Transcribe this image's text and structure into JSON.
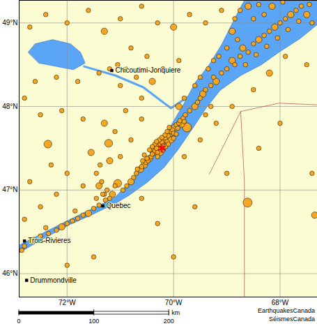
{
  "chart_data": {
    "type": "map",
    "xlim": [
      -72.9,
      -67.3
    ],
    "ylim": [
      45.72,
      49.27
    ],
    "xticks": [
      {
        "value": -72,
        "label": "72°W"
      },
      {
        "value": -70,
        "label": "70°W"
      },
      {
        "value": -68,
        "label": "68°W"
      }
    ],
    "yticks": [
      {
        "value": 46,
        "label": "46°N"
      },
      {
        "value": 47,
        "label": "47°N"
      },
      {
        "value": 48,
        "label": "48°N"
      },
      {
        "value": 49,
        "label": "49°N"
      }
    ],
    "grid": true,
    "color": "#f5a623",
    "water": [
      [
        [
          -72.9,
          46.34
        ],
        [
          -72.47,
          46.48
        ],
        [
          -71.94,
          46.65
        ],
        [
          -71.55,
          46.77
        ],
        [
          -71.29,
          46.85
        ],
        [
          -71.09,
          46.92
        ],
        [
          -70.83,
          47.09
        ],
        [
          -70.57,
          47.27
        ],
        [
          -70.31,
          47.52
        ],
        [
          -70.05,
          47.77
        ],
        [
          -69.82,
          48.02
        ],
        [
          -69.59,
          48.29
        ],
        [
          -69.33,
          48.5
        ],
        [
          -69.09,
          48.75
        ],
        [
          -68.91,
          48.98
        ],
        [
          -68.74,
          49.19
        ],
        [
          -68.67,
          49.27
        ],
        [
          -67.3,
          49.27
        ],
        [
          -67.3,
          48.98
        ],
        [
          -67.63,
          48.81
        ],
        [
          -68.02,
          48.65
        ],
        [
          -68.35,
          48.5
        ],
        [
          -68.74,
          48.37
        ],
        [
          -69.13,
          48.19
        ],
        [
          -69.39,
          47.98
        ],
        [
          -69.65,
          47.73
        ],
        [
          -69.92,
          47.48
        ],
        [
          -70.18,
          47.27
        ],
        [
          -70.5,
          47.09
        ],
        [
          -70.83,
          46.94
        ],
        [
          -71.09,
          46.84
        ],
        [
          -71.32,
          46.77
        ],
        [
          -71.55,
          46.7
        ],
        [
          -71.94,
          46.59
        ],
        [
          -72.47,
          46.41
        ],
        [
          -72.9,
          46.25
        ]
      ],
      [
        [
          -72.73,
          48.65
        ],
        [
          -72.6,
          48.75
        ],
        [
          -72.27,
          48.8
        ],
        [
          -71.94,
          48.75
        ],
        [
          -71.75,
          48.65
        ],
        [
          -71.66,
          48.52
        ],
        [
          -71.88,
          48.44
        ],
        [
          -72.21,
          48.48
        ],
        [
          -72.53,
          48.52
        ]
      ]
    ],
    "rivers": [
      [
        [
          -71.68,
          48.48
        ],
        [
          -71.09,
          48.37
        ],
        [
          -70.57,
          48.23
        ],
        [
          -70.05,
          47.98
        ],
        [
          -69.72,
          48.12
        ]
      ]
    ],
    "borders": [
      [
        [
          -69.33,
          47.19
        ],
        [
          -68.74,
          47.94
        ],
        [
          -68.02,
          48.04
        ],
        [
          -67.3,
          48.02
        ]
      ],
      [
        [
          -68.74,
          47.94
        ],
        [
          -68.67,
          47.1
        ],
        [
          -68.67,
          45.72
        ]
      ]
    ],
    "points": [
      [
        -70.6,
        47.28,
        1
      ],
      [
        -70.55,
        47.3,
        2
      ],
      [
        -70.52,
        47.33,
        1
      ],
      [
        -70.48,
        47.35,
        1
      ],
      [
        -70.45,
        47.38,
        2
      ],
      [
        -70.5,
        47.38,
        1
      ],
      [
        -70.42,
        47.4,
        1
      ],
      [
        -70.4,
        47.43,
        1
      ],
      [
        -70.38,
        47.45,
        2
      ],
      [
        -70.35,
        47.47,
        1
      ],
      [
        -70.32,
        47.5,
        1
      ],
      [
        -70.3,
        47.45,
        1
      ],
      [
        -70.28,
        47.52,
        2
      ],
      [
        -70.25,
        47.55,
        1
      ],
      [
        -70.22,
        47.57,
        1
      ],
      [
        -70.2,
        47.53,
        1
      ],
      [
        -70.18,
        47.6,
        2
      ],
      [
        -70.15,
        47.62,
        1
      ],
      [
        -70.12,
        47.58,
        1
      ],
      [
        -70.1,
        47.65,
        1
      ],
      [
        -70.08,
        47.67,
        2
      ],
      [
        -70.05,
        47.7,
        1
      ],
      [
        -70.02,
        47.72,
        1
      ],
      [
        -70.0,
        47.68,
        1
      ],
      [
        -69.98,
        47.75,
        2
      ],
      [
        -69.95,
        47.78,
        1
      ],
      [
        -69.92,
        47.74,
        1
      ],
      [
        -69.9,
        47.8,
        1
      ],
      [
        -69.88,
        47.83,
        1
      ],
      [
        -69.85,
        47.79,
        2
      ],
      [
        -69.82,
        47.86,
        1
      ],
      [
        -70.35,
        47.55,
        1
      ],
      [
        -70.4,
        47.52,
        1
      ],
      [
        -70.45,
        47.48,
        1
      ],
      [
        -70.58,
        47.35,
        1
      ],
      [
        -70.62,
        47.25,
        2
      ],
      [
        -70.3,
        47.4,
        1
      ],
      [
        -70.25,
        47.45,
        2
      ],
      [
        -70.2,
        47.48,
        1
      ],
      [
        -70.15,
        47.52,
        1
      ],
      [
        -70.1,
        47.55,
        1
      ],
      [
        -70.05,
        47.6,
        2
      ],
      [
        -70.0,
        47.62,
        1
      ],
      [
        -69.95,
        47.67,
        1
      ],
      [
        -70.27,
        47.6,
        1
      ],
      [
        -70.22,
        47.63,
        1
      ],
      [
        -70.16,
        47.66,
        1
      ],
      [
        -70.12,
        47.7,
        1
      ],
      [
        -70.32,
        47.58,
        1
      ],
      [
        -70.38,
        47.5,
        2
      ],
      [
        -70.55,
        47.42,
        1
      ],
      [
        -70.68,
        47.25,
        1
      ],
      [
        -70.7,
        47.2,
        1
      ],
      [
        -69.78,
        47.9,
        1
      ],
      [
        -69.8,
        47.82,
        1
      ],
      [
        -70.08,
        47.75,
        1
      ],
      [
        -69.75,
        47.75,
        4
      ],
      [
        -70.75,
        47.15,
        1
      ],
      [
        -70.8,
        47.1,
        2
      ],
      [
        -70.88,
        47.05,
        1
      ],
      [
        -70.95,
        47.0,
        1
      ],
      [
        -71.05,
        47.08,
        3
      ],
      [
        -71.1,
        47.05,
        1
      ],
      [
        -71.15,
        46.95,
        2
      ],
      [
        -71.2,
        46.9,
        1
      ],
      [
        -71.28,
        46.88,
        1
      ],
      [
        -71.25,
        47.0,
        1
      ],
      [
        -71.3,
        46.95,
        1
      ],
      [
        -71.4,
        46.82,
        1
      ],
      [
        -71.5,
        46.78,
        1
      ],
      [
        -71.6,
        46.72,
        2
      ],
      [
        -71.7,
        46.7,
        1
      ],
      [
        -71.8,
        46.66,
        1
      ],
      [
        -71.9,
        46.63,
        1
      ],
      [
        -72.0,
        46.6,
        1
      ],
      [
        -72.1,
        46.56,
        2
      ],
      [
        -72.2,
        46.52,
        1
      ],
      [
        -72.35,
        46.48,
        1
      ],
      [
        -72.5,
        46.45,
        1
      ],
      [
        -72.65,
        46.4,
        2
      ],
      [
        -72.8,
        46.33,
        1
      ],
      [
        -72.85,
        46.28,
        1
      ],
      [
        -71.45,
        46.9,
        1
      ],
      [
        -71.85,
        46.75,
        1
      ],
      [
        -72.4,
        46.55,
        1
      ],
      [
        -71.35,
        47.1,
        1
      ],
      [
        -71.4,
        47.05,
        2
      ],
      [
        -71.33,
        46.95,
        1
      ],
      [
        -71.45,
        47.2,
        1
      ],
      [
        -71.38,
        47.3,
        1
      ],
      [
        -71.2,
        47.35,
        2
      ],
      [
        -71.0,
        47.4,
        1
      ],
      [
        -69.7,
        47.95,
        1
      ],
      [
        -69.6,
        48.0,
        2
      ],
      [
        -69.55,
        48.05,
        1
      ],
      [
        -69.5,
        48.1,
        1
      ],
      [
        -69.45,
        48.15,
        2
      ],
      [
        -69.4,
        48.2,
        1
      ],
      [
        -69.3,
        48.25,
        1
      ],
      [
        -69.25,
        48.35,
        1
      ],
      [
        -69.2,
        48.3,
        2
      ],
      [
        -69.1,
        48.4,
        1
      ],
      [
        -69.0,
        48.45,
        1
      ],
      [
        -68.9,
        48.55,
        2
      ],
      [
        -68.85,
        48.5,
        1
      ],
      [
        -68.75,
        48.6,
        1
      ],
      [
        -68.7,
        48.7,
        2
      ],
      [
        -68.6,
        48.65,
        1
      ],
      [
        -68.5,
        48.75,
        1
      ],
      [
        -68.4,
        48.8,
        2
      ],
      [
        -68.3,
        48.85,
        1
      ],
      [
        -68.2,
        48.9,
        1
      ],
      [
        -68.1,
        48.95,
        2
      ],
      [
        -68.0,
        49.0,
        1
      ],
      [
        -67.9,
        49.05,
        1
      ],
      [
        -67.8,
        49.1,
        2
      ],
      [
        -67.7,
        49.15,
        1
      ],
      [
        -67.6,
        49.2,
        1
      ],
      [
        -67.5,
        49.1,
        2
      ],
      [
        -67.4,
        49.0,
        1
      ],
      [
        -67.45,
        49.22,
        1
      ],
      [
        -67.65,
        49.02,
        1
      ],
      [
        -67.85,
        48.92,
        1
      ],
      [
        -68.05,
        48.82,
        1
      ],
      [
        -68.25,
        48.72,
        1
      ],
      [
        -68.45,
        48.62,
        1
      ],
      [
        -68.65,
        48.5,
        1
      ],
      [
        -68.8,
        48.8,
        1
      ],
      [
        -68.9,
        48.9,
        2
      ],
      [
        -68.85,
        49.05,
        1
      ],
      [
        -68.75,
        49.15,
        1
      ],
      [
        -68.6,
        49.2,
        2
      ],
      [
        -68.5,
        49.05,
        1
      ],
      [
        -68.3,
        49.1,
        1
      ],
      [
        -68.15,
        49.2,
        2
      ],
      [
        -67.95,
        49.25,
        1
      ],
      [
        -68.4,
        49.22,
        1
      ],
      [
        -69.0,
        48.7,
        1
      ],
      [
        -69.15,
        48.6,
        1
      ],
      [
        -69.25,
        48.55,
        1
      ],
      [
        -69.35,
        48.45,
        1
      ],
      [
        -69.5,
        48.35,
        1
      ],
      [
        -69.6,
        48.25,
        1
      ],
      [
        -69.8,
        48.1,
        1
      ],
      [
        -69.9,
        48.0,
        2
      ],
      [
        -69.4,
        47.9,
        1
      ],
      [
        -69.3,
        48.0,
        1
      ],
      [
        -72.7,
        48.95,
        1
      ],
      [
        -72.4,
        49.1,
        1
      ],
      [
        -72.0,
        49.0,
        1
      ],
      [
        -71.6,
        49.15,
        1
      ],
      [
        -71.3,
        48.9,
        2
      ],
      [
        -71.0,
        49.05,
        1
      ],
      [
        -70.6,
        49.2,
        1
      ],
      [
        -70.3,
        49.0,
        1
      ],
      [
        -70.0,
        48.95,
        2
      ],
      [
        -69.7,
        49.1,
        1
      ],
      [
        -69.4,
        49.0,
        1
      ],
      [
        -69.1,
        49.15,
        1
      ],
      [
        -70.8,
        48.7,
        1
      ],
      [
        -70.5,
        48.6,
        1
      ],
      [
        -70.2,
        48.45,
        1
      ],
      [
        -69.9,
        48.55,
        1
      ],
      [
        -70.4,
        48.3,
        2
      ],
      [
        -70.7,
        48.35,
        1
      ],
      [
        -71.0,
        48.25,
        1
      ],
      [
        -71.4,
        48.4,
        1
      ],
      [
        -71.8,
        48.3,
        1
      ],
      [
        -72.2,
        48.35,
        1
      ],
      [
        -72.6,
        48.3,
        1
      ],
      [
        -72.8,
        48.1,
        1
      ],
      [
        -72.5,
        47.9,
        1
      ],
      [
        -72.1,
        47.95,
        1
      ],
      [
        -71.7,
        47.85,
        1
      ],
      [
        -71.3,
        47.8,
        2
      ],
      [
        -70.9,
        47.95,
        1
      ],
      [
        -70.6,
        47.85,
        1
      ],
      [
        -70.8,
        47.6,
        1
      ],
      [
        -71.1,
        47.7,
        1
      ],
      [
        -72.3,
        47.3,
        1
      ],
      [
        -72.7,
        47.1,
        1
      ],
      [
        -72.0,
        47.2,
        1
      ],
      [
        -71.7,
        47.05,
        1
      ],
      [
        -72.5,
        46.8,
        1
      ],
      [
        -72.8,
        46.65,
        1
      ],
      [
        -72.2,
        46.95,
        1
      ],
      [
        -70.9,
        48.45,
        1
      ],
      [
        -71.05,
        48.5,
        1
      ],
      [
        -71.2,
        48.45,
        1
      ],
      [
        -70.6,
        48.1,
        1
      ],
      [
        -70.6,
        46.9,
        1
      ],
      [
        -70.3,
        46.6,
        1
      ],
      [
        -69.8,
        47.4,
        1
      ],
      [
        -69.5,
        47.6,
        1
      ],
      [
        -69.2,
        47.8,
        1
      ],
      [
        -68.9,
        48.0,
        1
      ],
      [
        -68.5,
        48.2,
        1
      ],
      [
        -68.2,
        48.4,
        2
      ],
      [
        -67.9,
        48.6,
        1
      ],
      [
        -67.5,
        48.5,
        1
      ],
      [
        -68.0,
        47.8,
        1
      ],
      [
        -68.4,
        47.5,
        1
      ],
      [
        -69.0,
        47.2,
        1
      ],
      [
        -69.6,
        46.8,
        1
      ],
      [
        -70.0,
        46.2,
        1
      ],
      [
        -71.5,
        46.2,
        1
      ],
      [
        -72.0,
        46.1,
        1
      ],
      [
        -67.4,
        47.2,
        1
      ],
      [
        -67.35,
        46.7,
        2
      ],
      [
        -68.61,
        46.85,
        4
      ],
      [
        -72.36,
        47.55,
        3
      ],
      [
        -71.55,
        47.45,
        2
      ],
      [
        -71.22,
        47.56,
        3
      ]
    ],
    "highlight": {
      "lon": -70.22,
      "lat": 47.5,
      "color": "#ff0000",
      "marker": "asterisk"
    },
    "cities": [
      {
        "name": "Chicoutimi-Jonquiere",
        "lon": -71.16,
        "lat": 48.43
      },
      {
        "name": "Quebec",
        "lon": -71.33,
        "lat": 46.81
      },
      {
        "name": "Trois-Rivieres",
        "lon": -72.8,
        "lat": 46.39
      },
      {
        "name": "Drummondville",
        "lon": -72.76,
        "lat": 45.92
      }
    ],
    "scale_bar": {
      "ticks": [
        0,
        100,
        200
      ],
      "unit": "km"
    },
    "credit": [
      "EarthquakesCanada",
      "SéismesCanada"
    ]
  }
}
